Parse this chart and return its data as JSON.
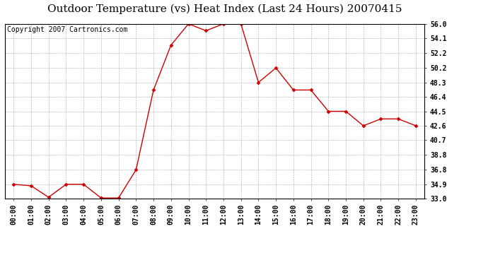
{
  "title": "Outdoor Temperature (vs) Heat Index (Last 24 Hours) 20070415",
  "copyright": "Copyright 2007 Cartronics.com",
  "x_labels": [
    "00:00",
    "01:00",
    "02:00",
    "03:00",
    "04:00",
    "05:00",
    "06:00",
    "07:00",
    "08:00",
    "09:00",
    "10:00",
    "11:00",
    "12:00",
    "13:00",
    "14:00",
    "15:00",
    "16:00",
    "17:00",
    "18:00",
    "19:00",
    "20:00",
    "21:00",
    "22:00",
    "23:00"
  ],
  "y_values": [
    34.9,
    34.7,
    33.2,
    34.9,
    34.9,
    33.1,
    33.1,
    36.8,
    47.3,
    53.2,
    56.0,
    55.1,
    56.0,
    56.0,
    48.3,
    50.2,
    47.3,
    47.3,
    44.5,
    44.5,
    42.6,
    43.5,
    43.5,
    42.6
  ],
  "line_color": "#cc0000",
  "marker": "D",
  "marker_size": 2.5,
  "background_color": "#ffffff",
  "plot_bg_color": "#ffffff",
  "grid_color": "#aaaaaa",
  "y_min": 33.0,
  "y_max": 56.0,
  "y_ticks": [
    33.0,
    34.9,
    36.8,
    38.8,
    40.7,
    42.6,
    44.5,
    46.4,
    48.3,
    50.2,
    52.2,
    54.1,
    56.0
  ],
  "title_fontsize": 11,
  "copyright_fontsize": 7,
  "tick_fontsize": 7
}
